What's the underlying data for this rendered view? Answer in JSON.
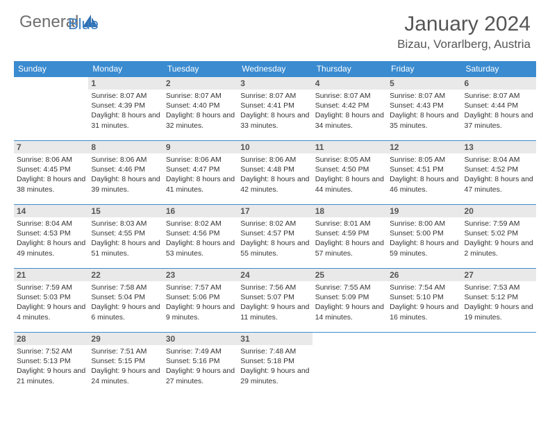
{
  "logo": {
    "general": "General",
    "blue": "Blue"
  },
  "title": "January 2024",
  "location": "Bizau, Vorarlberg, Austria",
  "colors": {
    "header_bg": "#3a8bd0",
    "header_text": "#ffffff",
    "daynum_bg": "#e9e9e9",
    "border": "#3a8bd0",
    "logo_gray": "#6e6e6e",
    "logo_blue": "#3a7fc4"
  },
  "weekdays": [
    "Sunday",
    "Monday",
    "Tuesday",
    "Wednesday",
    "Thursday",
    "Friday",
    "Saturday"
  ],
  "weeks": [
    [
      null,
      {
        "num": "1",
        "sunrise": "Sunrise: 8:07 AM",
        "sunset": "Sunset: 4:39 PM",
        "daylight": "Daylight: 8 hours and 31 minutes."
      },
      {
        "num": "2",
        "sunrise": "Sunrise: 8:07 AM",
        "sunset": "Sunset: 4:40 PM",
        "daylight": "Daylight: 8 hours and 32 minutes."
      },
      {
        "num": "3",
        "sunrise": "Sunrise: 8:07 AM",
        "sunset": "Sunset: 4:41 PM",
        "daylight": "Daylight: 8 hours and 33 minutes."
      },
      {
        "num": "4",
        "sunrise": "Sunrise: 8:07 AM",
        "sunset": "Sunset: 4:42 PM",
        "daylight": "Daylight: 8 hours and 34 minutes."
      },
      {
        "num": "5",
        "sunrise": "Sunrise: 8:07 AM",
        "sunset": "Sunset: 4:43 PM",
        "daylight": "Daylight: 8 hours and 35 minutes."
      },
      {
        "num": "6",
        "sunrise": "Sunrise: 8:07 AM",
        "sunset": "Sunset: 4:44 PM",
        "daylight": "Daylight: 8 hours and 37 minutes."
      }
    ],
    [
      {
        "num": "7",
        "sunrise": "Sunrise: 8:06 AM",
        "sunset": "Sunset: 4:45 PM",
        "daylight": "Daylight: 8 hours and 38 minutes."
      },
      {
        "num": "8",
        "sunrise": "Sunrise: 8:06 AM",
        "sunset": "Sunset: 4:46 PM",
        "daylight": "Daylight: 8 hours and 39 minutes."
      },
      {
        "num": "9",
        "sunrise": "Sunrise: 8:06 AM",
        "sunset": "Sunset: 4:47 PM",
        "daylight": "Daylight: 8 hours and 41 minutes."
      },
      {
        "num": "10",
        "sunrise": "Sunrise: 8:06 AM",
        "sunset": "Sunset: 4:48 PM",
        "daylight": "Daylight: 8 hours and 42 minutes."
      },
      {
        "num": "11",
        "sunrise": "Sunrise: 8:05 AM",
        "sunset": "Sunset: 4:50 PM",
        "daylight": "Daylight: 8 hours and 44 minutes."
      },
      {
        "num": "12",
        "sunrise": "Sunrise: 8:05 AM",
        "sunset": "Sunset: 4:51 PM",
        "daylight": "Daylight: 8 hours and 46 minutes."
      },
      {
        "num": "13",
        "sunrise": "Sunrise: 8:04 AM",
        "sunset": "Sunset: 4:52 PM",
        "daylight": "Daylight: 8 hours and 47 minutes."
      }
    ],
    [
      {
        "num": "14",
        "sunrise": "Sunrise: 8:04 AM",
        "sunset": "Sunset: 4:53 PM",
        "daylight": "Daylight: 8 hours and 49 minutes."
      },
      {
        "num": "15",
        "sunrise": "Sunrise: 8:03 AM",
        "sunset": "Sunset: 4:55 PM",
        "daylight": "Daylight: 8 hours and 51 minutes."
      },
      {
        "num": "16",
        "sunrise": "Sunrise: 8:02 AM",
        "sunset": "Sunset: 4:56 PM",
        "daylight": "Daylight: 8 hours and 53 minutes."
      },
      {
        "num": "17",
        "sunrise": "Sunrise: 8:02 AM",
        "sunset": "Sunset: 4:57 PM",
        "daylight": "Daylight: 8 hours and 55 minutes."
      },
      {
        "num": "18",
        "sunrise": "Sunrise: 8:01 AM",
        "sunset": "Sunset: 4:59 PM",
        "daylight": "Daylight: 8 hours and 57 minutes."
      },
      {
        "num": "19",
        "sunrise": "Sunrise: 8:00 AM",
        "sunset": "Sunset: 5:00 PM",
        "daylight": "Daylight: 8 hours and 59 minutes."
      },
      {
        "num": "20",
        "sunrise": "Sunrise: 7:59 AM",
        "sunset": "Sunset: 5:02 PM",
        "daylight": "Daylight: 9 hours and 2 minutes."
      }
    ],
    [
      {
        "num": "21",
        "sunrise": "Sunrise: 7:59 AM",
        "sunset": "Sunset: 5:03 PM",
        "daylight": "Daylight: 9 hours and 4 minutes."
      },
      {
        "num": "22",
        "sunrise": "Sunrise: 7:58 AM",
        "sunset": "Sunset: 5:04 PM",
        "daylight": "Daylight: 9 hours and 6 minutes."
      },
      {
        "num": "23",
        "sunrise": "Sunrise: 7:57 AM",
        "sunset": "Sunset: 5:06 PM",
        "daylight": "Daylight: 9 hours and 9 minutes."
      },
      {
        "num": "24",
        "sunrise": "Sunrise: 7:56 AM",
        "sunset": "Sunset: 5:07 PM",
        "daylight": "Daylight: 9 hours and 11 minutes."
      },
      {
        "num": "25",
        "sunrise": "Sunrise: 7:55 AM",
        "sunset": "Sunset: 5:09 PM",
        "daylight": "Daylight: 9 hours and 14 minutes."
      },
      {
        "num": "26",
        "sunrise": "Sunrise: 7:54 AM",
        "sunset": "Sunset: 5:10 PM",
        "daylight": "Daylight: 9 hours and 16 minutes."
      },
      {
        "num": "27",
        "sunrise": "Sunrise: 7:53 AM",
        "sunset": "Sunset: 5:12 PM",
        "daylight": "Daylight: 9 hours and 19 minutes."
      }
    ],
    [
      {
        "num": "28",
        "sunrise": "Sunrise: 7:52 AM",
        "sunset": "Sunset: 5:13 PM",
        "daylight": "Daylight: 9 hours and 21 minutes."
      },
      {
        "num": "29",
        "sunrise": "Sunrise: 7:51 AM",
        "sunset": "Sunset: 5:15 PM",
        "daylight": "Daylight: 9 hours and 24 minutes."
      },
      {
        "num": "30",
        "sunrise": "Sunrise: 7:49 AM",
        "sunset": "Sunset: 5:16 PM",
        "daylight": "Daylight: 9 hours and 27 minutes."
      },
      {
        "num": "31",
        "sunrise": "Sunrise: 7:48 AM",
        "sunset": "Sunset: 5:18 PM",
        "daylight": "Daylight: 9 hours and 29 minutes."
      },
      null,
      null,
      null
    ]
  ]
}
